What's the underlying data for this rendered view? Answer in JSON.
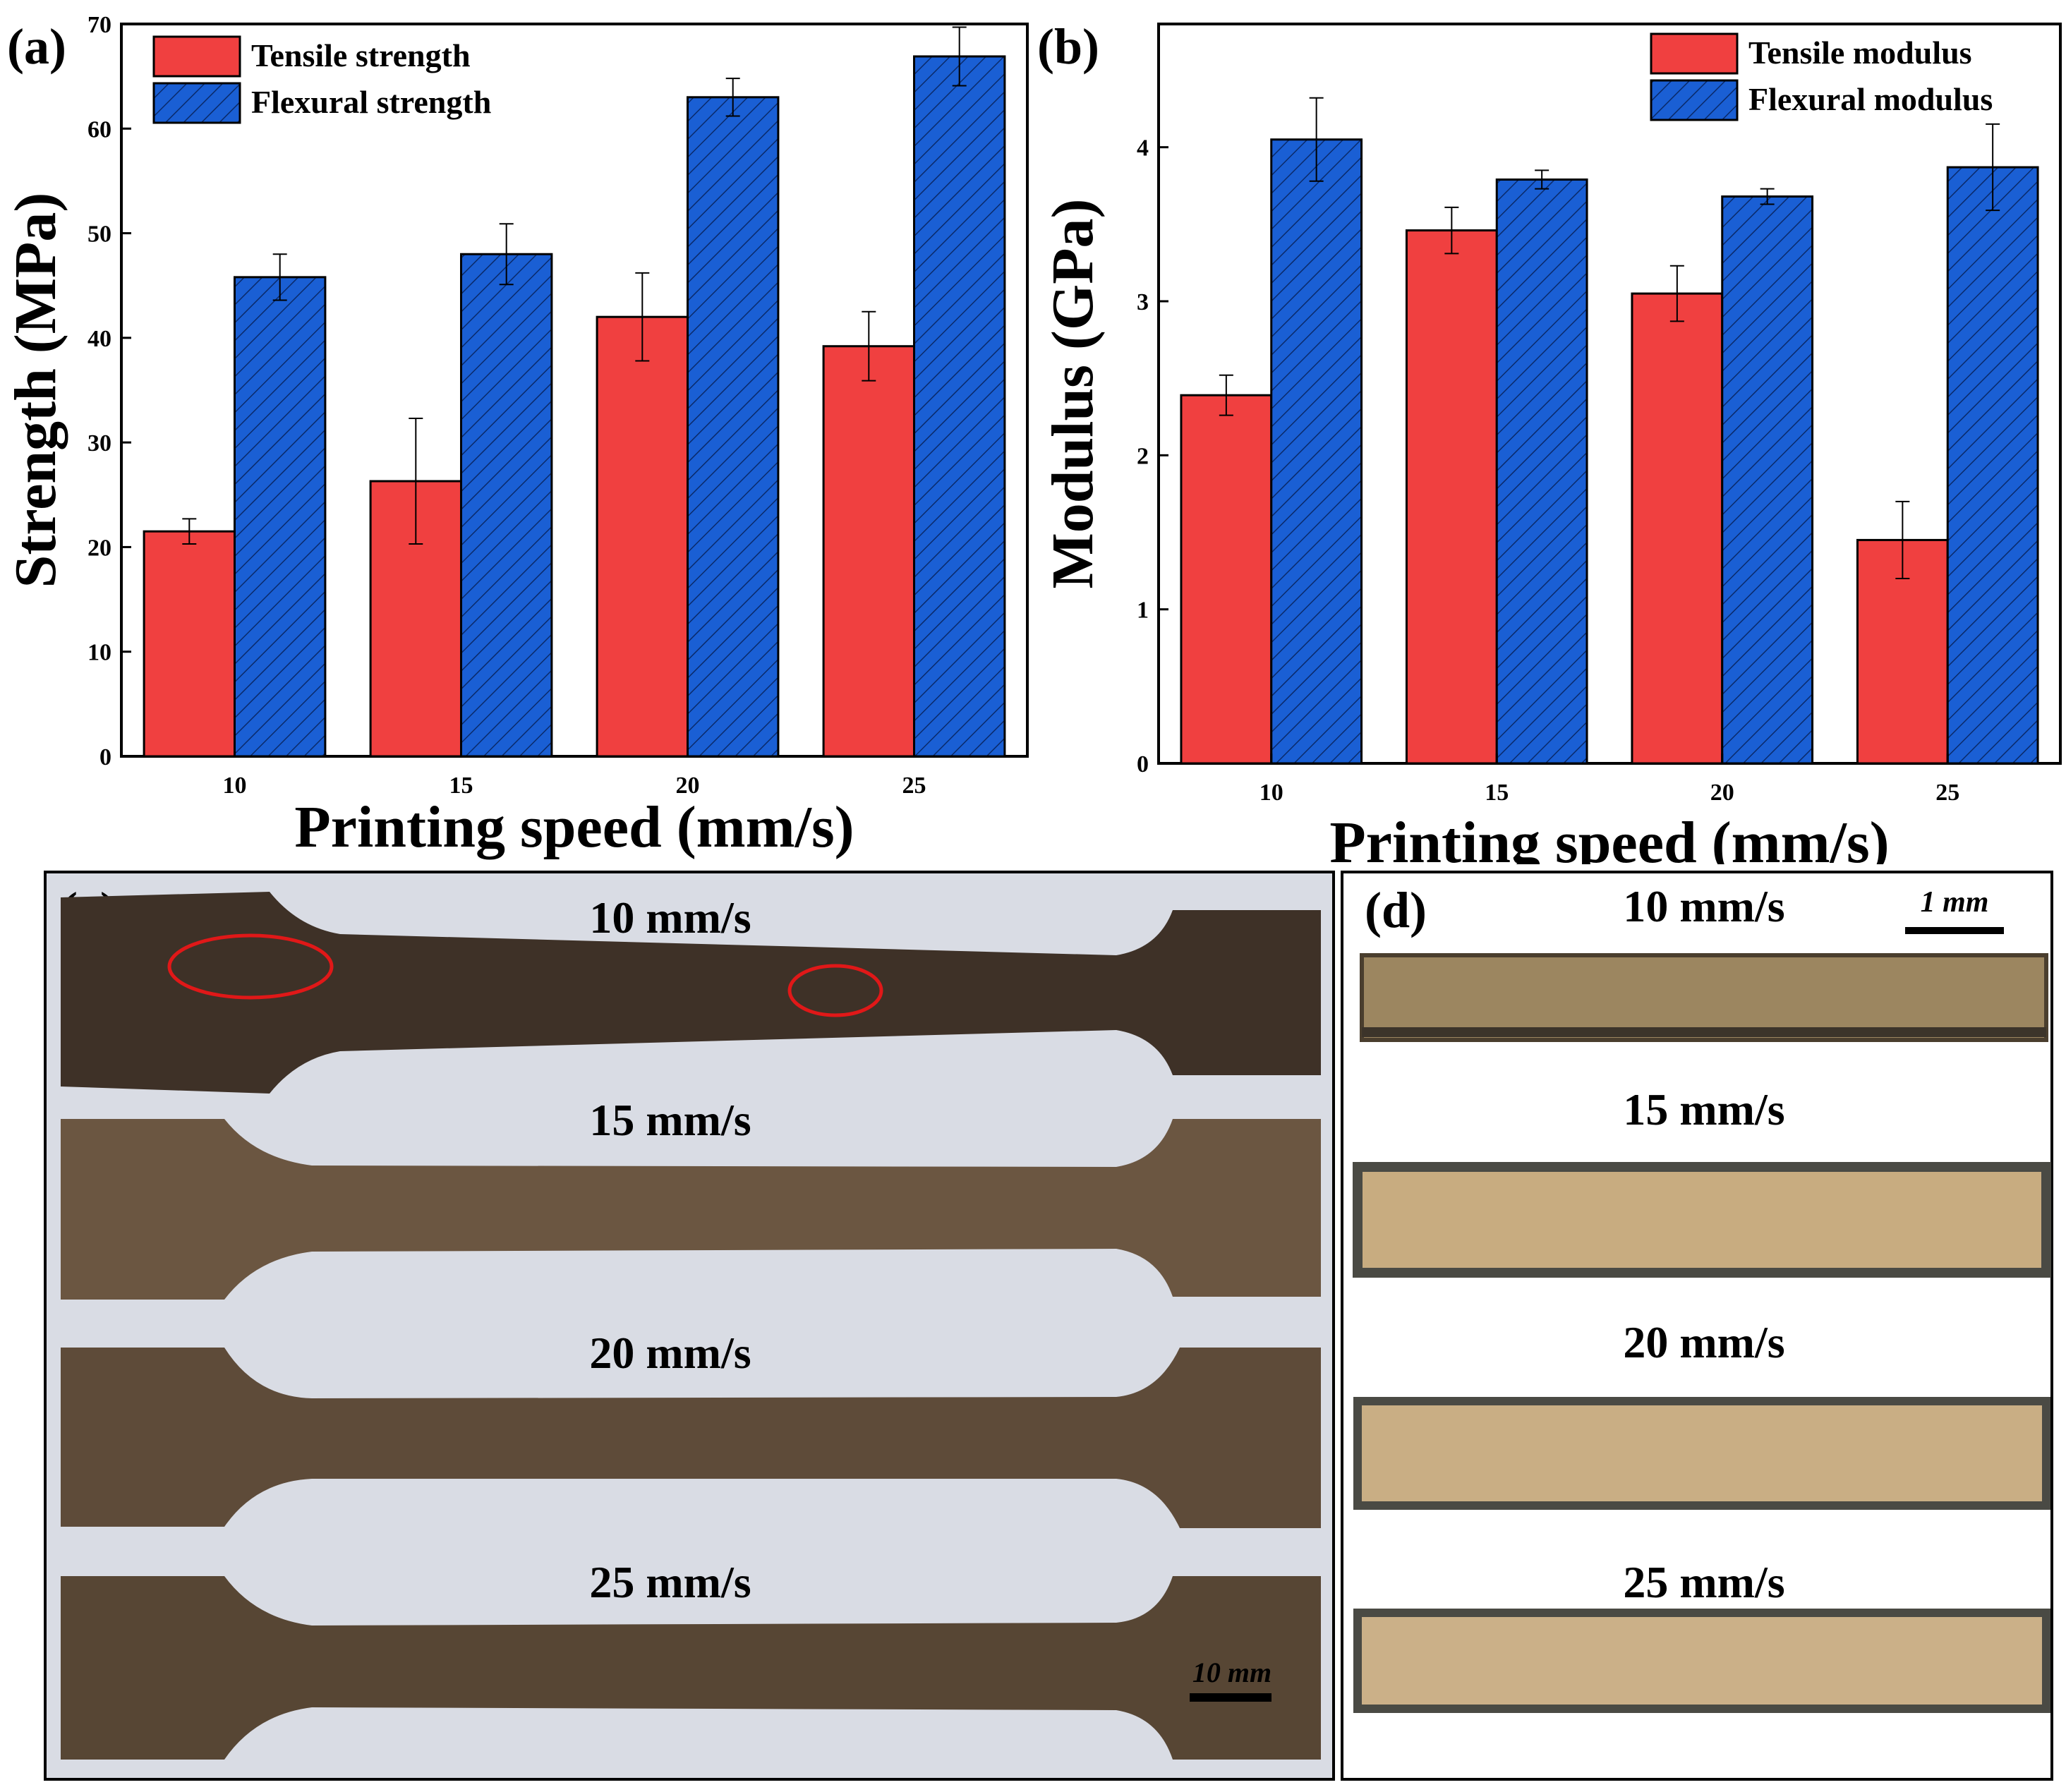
{
  "chart_data": [
    {
      "panel_label": "(a)",
      "type": "bar",
      "xlabel": "Printing speed (mm/s)",
      "ylabel": "Strength (MPa)",
      "ylim": [
        0,
        70
      ],
      "yticks": [
        "0",
        "10",
        "20",
        "30",
        "40",
        "50",
        "60",
        "70"
      ],
      "categories": [
        "10",
        "15",
        "20",
        "25"
      ],
      "legend_position": "top-left",
      "series": [
        {
          "name": "Tensile strength",
          "color": "#f04040",
          "hatch": false,
          "values": [
            21.5,
            26.3,
            42.0,
            39.2
          ],
          "errors": [
            1.2,
            6.0,
            4.2,
            3.3
          ]
        },
        {
          "name": "Flexural strength",
          "color": "#1a5fd4",
          "hatch": true,
          "values": [
            45.8,
            48.0,
            63.0,
            66.9
          ],
          "errors": [
            2.2,
            2.9,
            1.8,
            2.8
          ]
        }
      ]
    },
    {
      "panel_label": "(b)",
      "type": "bar",
      "xlabel": "Printing speed (mm/s)",
      "ylabel": "Modulus (GPa)",
      "ylim": [
        0,
        4.8
      ],
      "yticks": [
        "0",
        "1",
        "2",
        "3",
        "4"
      ],
      "categories": [
        "10",
        "15",
        "20",
        "25"
      ],
      "legend_position": "top-right",
      "series": [
        {
          "name": "Tensile modulus",
          "color": "#f04040",
          "hatch": false,
          "values": [
            2.39,
            3.46,
            3.05,
            1.45
          ],
          "errors": [
            0.13,
            0.15,
            0.18,
            0.25
          ]
        },
        {
          "name": "Flexural modulus",
          "color": "#1a5fd4",
          "hatch": true,
          "values": [
            4.05,
            3.79,
            3.68,
            3.87
          ],
          "errors": [
            0.27,
            0.06,
            0.05,
            0.28
          ]
        }
      ]
    }
  ],
  "photo_c": {
    "panel_label": "(c)",
    "specimen_labels": [
      "10 mm/s",
      "15 mm/s",
      "20 mm/s",
      "25 mm/s"
    ],
    "scale_bar": "10 mm",
    "specimen_colors": [
      "#3e3127",
      "#6b5641",
      "#5e4b39",
      "#574634"
    ],
    "background_color": "#d9dce4"
  },
  "photo_d": {
    "panel_label": "(d)",
    "section_labels": [
      "10 mm/s",
      "15 mm/s",
      "20 mm/s",
      "25 mm/s"
    ],
    "scale_bar": "1 mm",
    "section_colors": [
      "#9c8660",
      "#c8ac80",
      "#c9ae84",
      "#cbb088"
    ]
  }
}
